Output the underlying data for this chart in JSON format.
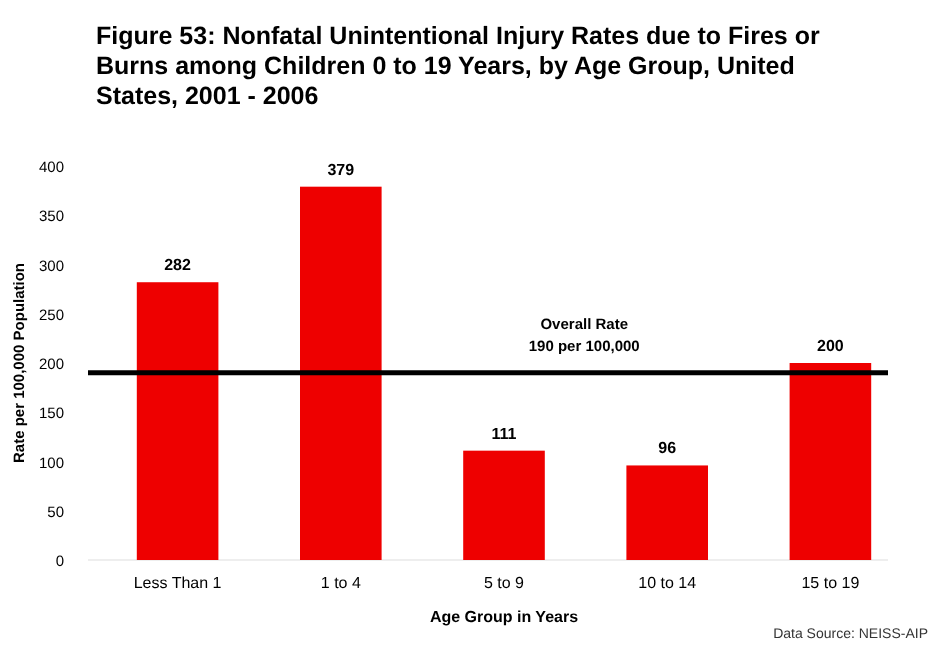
{
  "chart_data": {
    "type": "bar",
    "title": "Figure 53: Nonfatal Unintentional Injury Rates due to Fires or Burns among Children 0 to 19 Years, by Age Group, United States, 2001 - 2006",
    "xlabel": "Age Group in Years",
    "ylabel": "Rate per 100,000 Population",
    "categories": [
      "Less Than 1",
      "1 to 4",
      "5 to 9",
      "10 to 14",
      "15 to 19"
    ],
    "values": [
      282,
      379,
      111,
      96,
      200
    ],
    "color": "#ee0000",
    "ylim": [
      0,
      400
    ],
    "yticks": [
      0,
      50,
      100,
      150,
      200,
      250,
      300,
      350,
      400
    ],
    "data_labels": true,
    "ref_lines": [
      {
        "axis": "y",
        "value": 190,
        "label": "Overall Rate\n190 per 100,000",
        "color": "#000000"
      }
    ],
    "annotations": [
      "Data Source: NEISS-AIP"
    ]
  }
}
